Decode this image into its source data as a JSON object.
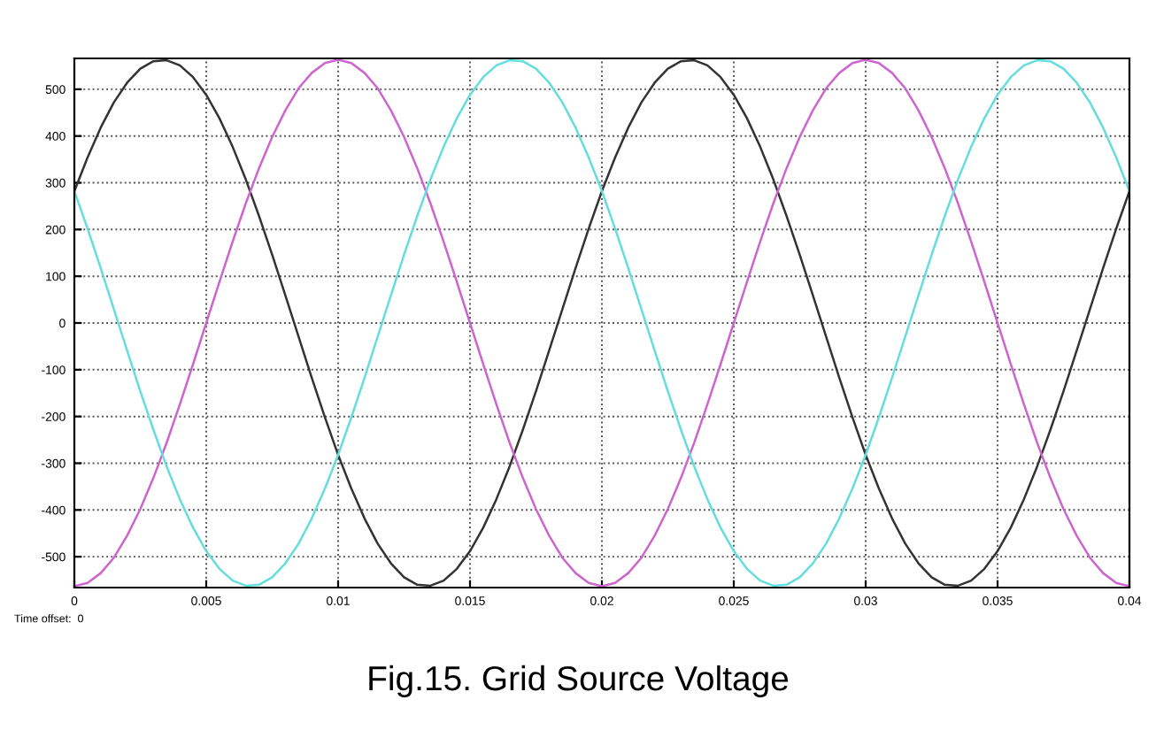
{
  "chart_data": {
    "type": "line",
    "title": "Fig.15. Grid Source Voltage",
    "annotations": [
      "Time offset:  0"
    ],
    "x": [
      0,
      0.0005,
      0.001,
      0.0015,
      0.002,
      0.0025,
      0.003,
      0.0035,
      0.004,
      0.0045,
      0.005,
      0.0055,
      0.006,
      0.0065,
      0.007,
      0.0075,
      0.008,
      0.0085,
      0.009,
      0.0095,
      0.01,
      0.0105,
      0.011,
      0.0115,
      0.012,
      0.0125,
      0.013,
      0.0135,
      0.014,
      0.0145,
      0.015,
      0.0155,
      0.016,
      0.0165,
      0.017,
      0.0175,
      0.018,
      0.0185,
      0.019,
      0.0195,
      0.02,
      0.0205,
      0.021,
      0.0215,
      0.022,
      0.0225,
      0.023,
      0.0235,
      0.024,
      0.0245,
      0.025,
      0.0255,
      0.026,
      0.0265,
      0.027,
      0.0275,
      0.028,
      0.0285,
      0.029,
      0.0295,
      0.03,
      0.0305,
      0.031,
      0.0315,
      0.032,
      0.0325,
      0.033,
      0.0335,
      0.034,
      0.0345,
      0.035,
      0.0355,
      0.036,
      0.0365,
      0.037,
      0.0375,
      0.038,
      0.0385,
      0.039,
      0.0395,
      0.04
    ],
    "series": [
      {
        "color": "#333333",
        "values": [
          282,
          354,
          418,
          472,
          514,
          544,
          560,
          562,
          551,
          526,
          488,
          438,
          377,
          307,
          229,
          146,
          59,
          -29,
          -117,
          -202,
          -282,
          -354,
          -418,
          -472,
          -514,
          -544,
          -560,
          -562,
          -551,
          -526,
          -488,
          -438,
          -377,
          -307,
          -229,
          -146,
          -59,
          29,
          117,
          202,
          282,
          354,
          418,
          472,
          514,
          544,
          560,
          562,
          551,
          526,
          488,
          438,
          377,
          307,
          229,
          146,
          59,
          -29,
          -117,
          -202,
          -282,
          -354,
          -418,
          -472,
          -514,
          -544,
          -560,
          -562,
          -551,
          -526,
          -488,
          -438,
          -377,
          -307,
          -229,
          -146,
          -59,
          29,
          117,
          202,
          282
        ]
      },
      {
        "color": "#cc66cc",
        "values": [
          -563,
          -556,
          -535,
          -502,
          -455,
          -398,
          -331,
          -256,
          -174,
          -88,
          0,
          88,
          174,
          256,
          331,
          398,
          455,
          502,
          535,
          556,
          563,
          556,
          535,
          502,
          455,
          398,
          331,
          256,
          174,
          88,
          0,
          -88,
          -174,
          -256,
          -331,
          -398,
          -455,
          -502,
          -535,
          -556,
          -563,
          -556,
          -535,
          -502,
          -455,
          -398,
          -331,
          -256,
          -174,
          -88,
          0,
          88,
          174,
          256,
          331,
          398,
          455,
          502,
          535,
          556,
          563,
          556,
          535,
          502,
          455,
          398,
          331,
          256,
          174,
          88,
          0,
          -88,
          -174,
          -256,
          -331,
          -398,
          -455,
          -502,
          -535,
          -556,
          -563
        ]
      },
      {
        "color": "#66dddd",
        "values": [
          282,
          202,
          117,
          29,
          -59,
          -146,
          -229,
          -307,
          -377,
          -438,
          -488,
          -526,
          -551,
          -562,
          -560,
          -544,
          -514,
          -472,
          -418,
          -354,
          -282,
          -202,
          -117,
          -29,
          59,
          146,
          229,
          307,
          377,
          438,
          488,
          526,
          551,
          562,
          560,
          544,
          514,
          472,
          418,
          354,
          282,
          202,
          117,
          29,
          -59,
          -146,
          -229,
          -307,
          -377,
          -438,
          -488,
          -526,
          -551,
          -562,
          -560,
          -544,
          -514,
          -472,
          -418,
          -354,
          -282,
          -202,
          -117,
          -29,
          59,
          146,
          229,
          307,
          377,
          438,
          488,
          526,
          551,
          562,
          560,
          544,
          514,
          472,
          418,
          354,
          282
        ]
      }
    ],
    "xlim": [
      0,
      0.04
    ],
    "xticks": [
      0,
      0.005,
      0.01,
      0.015,
      0.02,
      0.025,
      0.03,
      0.035,
      0.04
    ],
    "ylim": [
      -566,
      566
    ],
    "yticks": [
      -500,
      -400,
      -300,
      -200,
      -100,
      0,
      100,
      200,
      300,
      400,
      500
    ],
    "grid": true,
    "line_style": "solid",
    "marker": "none"
  }
}
